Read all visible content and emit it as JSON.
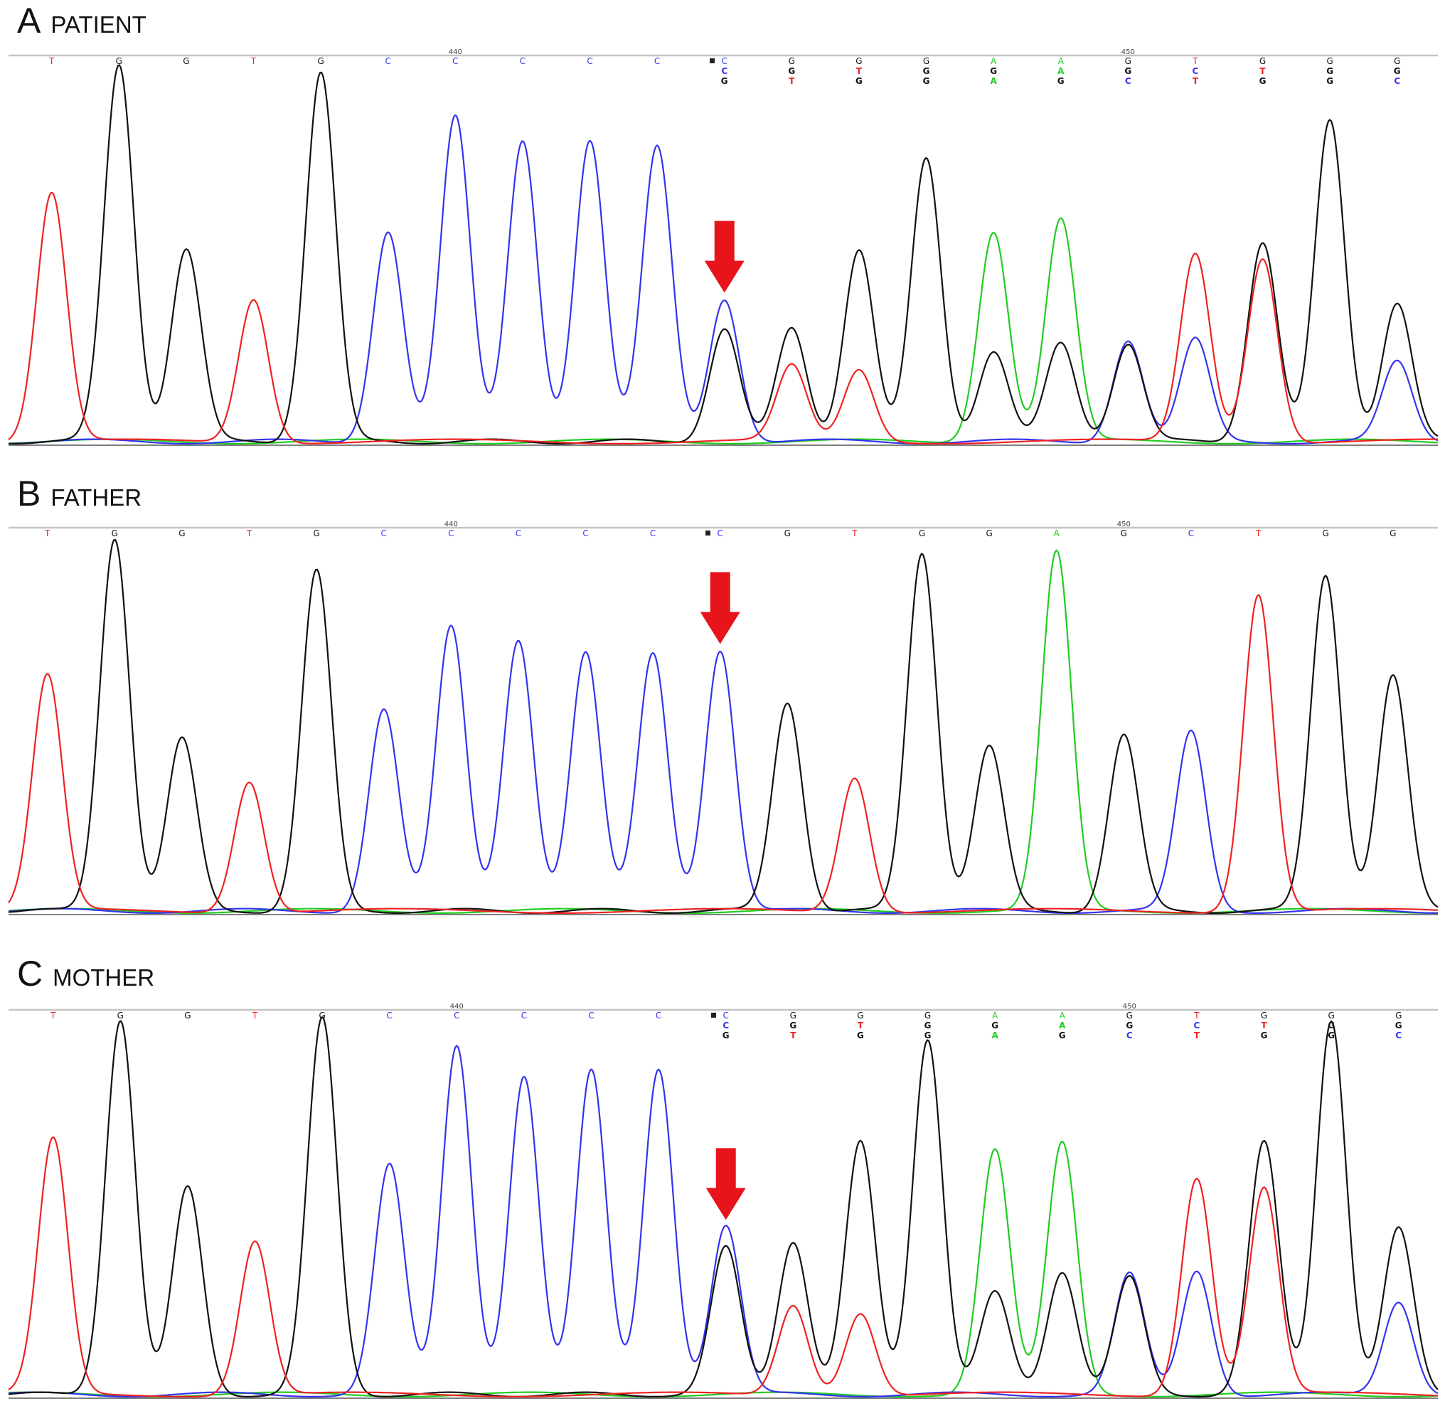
{
  "colors": {
    "A": "#22cc22",
    "C": "#3333ee",
    "G": "#111111",
    "T": "#ee2222",
    "arrow": "#e8141c",
    "rule": "#c4c4c4"
  },
  "chart_data": [
    {
      "type": "line",
      "panel_letter": "A",
      "title": "PATIENT",
      "position_labels": [
        {
          "index": 6,
          "label": "440"
        },
        {
          "index": 16,
          "label": "450"
        }
      ],
      "primary_bases": [
        "T",
        "G",
        "G",
        "T",
        "G",
        "C",
        "C",
        "C",
        "C",
        "C",
        "C",
        "G",
        "G",
        "G",
        "A",
        "A",
        "G",
        "T",
        "G",
        "G",
        "G"
      ],
      "secondary_bases": [
        "",
        "",
        "",
        "",
        "",
        "",
        "",
        "",
        "",
        "",
        "C",
        "G",
        "T",
        "G",
        "G",
        "A",
        "G",
        "C",
        "T",
        "G",
        "G"
      ],
      "tertiary_bases": [
        "",
        "",
        "",
        "",
        "",
        "",
        "",
        "",
        "",
        "",
        "G",
        "T",
        "G",
        "G",
        "A",
        "G",
        "C",
        "T",
        "G",
        "G",
        "C"
      ],
      "marker_index": 10,
      "arrow_index": 10,
      "ylim": [
        0,
        1
      ],
      "peaks": [
        {
          "base": "T",
          "pos": 0.05,
          "h": 0.66
        },
        {
          "base": "G",
          "pos": 1.05,
          "h": 1.0
        },
        {
          "base": "G",
          "pos": 2.05,
          "h": 0.51
        },
        {
          "base": "T",
          "pos": 3.05,
          "h": 0.38
        },
        {
          "base": "G",
          "pos": 4.05,
          "h": 0.98
        },
        {
          "base": "C",
          "pos": 5.05,
          "h": 0.56
        },
        {
          "base": "C",
          "pos": 6.05,
          "h": 0.86
        },
        {
          "base": "C",
          "pos": 7.05,
          "h": 0.8
        },
        {
          "base": "C",
          "pos": 8.05,
          "h": 0.8
        },
        {
          "base": "C",
          "pos": 9.05,
          "h": 0.78
        },
        {
          "base": "C",
          "pos": 10.05,
          "h": 0.38
        },
        {
          "base": "G",
          "pos": 10.05,
          "h": 0.3
        },
        {
          "base": "G",
          "pos": 11.05,
          "h": 0.3
        },
        {
          "base": "T",
          "pos": 11.05,
          "h": 0.2
        },
        {
          "base": "G",
          "pos": 12.05,
          "h": 0.51
        },
        {
          "base": "T",
          "pos": 12.05,
          "h": 0.19
        },
        {
          "base": "G",
          "pos": 13.05,
          "h": 0.75
        },
        {
          "base": "A",
          "pos": 14.05,
          "h": 0.56
        },
        {
          "base": "G",
          "pos": 14.05,
          "h": 0.24
        },
        {
          "base": "A",
          "pos": 15.05,
          "h": 0.59
        },
        {
          "base": "G",
          "pos": 15.05,
          "h": 0.26
        },
        {
          "base": "C",
          "pos": 16.05,
          "h": 0.27
        },
        {
          "base": "G",
          "pos": 16.05,
          "h": 0.26
        },
        {
          "base": "T",
          "pos": 17.05,
          "h": 0.5
        },
        {
          "base": "C",
          "pos": 17.05,
          "h": 0.27
        },
        {
          "base": "T",
          "pos": 18.05,
          "h": 0.49
        },
        {
          "base": "G",
          "pos": 18.05,
          "h": 0.53
        },
        {
          "base": "G",
          "pos": 19.05,
          "h": 0.85
        },
        {
          "base": "G",
          "pos": 20.05,
          "h": 0.37
        },
        {
          "base": "C",
          "pos": 20.05,
          "h": 0.21
        }
      ]
    },
    {
      "type": "line",
      "panel_letter": "B",
      "title": "FATHER",
      "position_labels": [
        {
          "index": 6,
          "label": "440"
        },
        {
          "index": 16,
          "label": "450"
        }
      ],
      "primary_bases": [
        "T",
        "G",
        "G",
        "T",
        "G",
        "C",
        "C",
        "C",
        "C",
        "C",
        "C",
        "G",
        "T",
        "G",
        "G",
        "A",
        "G",
        "C",
        "T",
        "G",
        "G"
      ],
      "secondary_bases": [],
      "tertiary_bases": [],
      "marker_index": 10,
      "arrow_index": 10,
      "ylim": [
        0,
        1
      ],
      "peaks": [
        {
          "base": "T",
          "pos": 0.05,
          "h": 0.63
        },
        {
          "base": "G",
          "pos": 1.05,
          "h": 1.0
        },
        {
          "base": "G",
          "pos": 2.05,
          "h": 0.46
        },
        {
          "base": "T",
          "pos": 3.05,
          "h": 0.35
        },
        {
          "base": "G",
          "pos": 4.05,
          "h": 0.91
        },
        {
          "base": "C",
          "pos": 5.05,
          "h": 0.54
        },
        {
          "base": "C",
          "pos": 6.05,
          "h": 0.76
        },
        {
          "base": "C",
          "pos": 7.05,
          "h": 0.73
        },
        {
          "base": "C",
          "pos": 8.05,
          "h": 0.69
        },
        {
          "base": "C",
          "pos": 9.05,
          "h": 0.69
        },
        {
          "base": "C",
          "pos": 10.05,
          "h": 0.7
        },
        {
          "base": "G",
          "pos": 11.05,
          "h": 0.56
        },
        {
          "base": "T",
          "pos": 12.05,
          "h": 0.36
        },
        {
          "base": "G",
          "pos": 13.05,
          "h": 0.96
        },
        {
          "base": "G",
          "pos": 14.05,
          "h": 0.44
        },
        {
          "base": "A",
          "pos": 15.05,
          "h": 0.96
        },
        {
          "base": "G",
          "pos": 16.05,
          "h": 0.47
        },
        {
          "base": "C",
          "pos": 17.05,
          "h": 0.48
        },
        {
          "base": "T",
          "pos": 18.05,
          "h": 0.85
        },
        {
          "base": "G",
          "pos": 19.05,
          "h": 0.9
        },
        {
          "base": "G",
          "pos": 20.05,
          "h": 0.63
        }
      ]
    },
    {
      "type": "line",
      "panel_letter": "C",
      "title": "MOTHER",
      "position_labels": [
        {
          "index": 6,
          "label": "440"
        },
        {
          "index": 16,
          "label": "450"
        }
      ],
      "primary_bases": [
        "T",
        "G",
        "G",
        "T",
        "G",
        "C",
        "C",
        "C",
        "C",
        "C",
        "C",
        "G",
        "G",
        "G",
        "A",
        "A",
        "G",
        "T",
        "G",
        "G",
        "G"
      ],
      "secondary_bases": [
        "",
        "",
        "",
        "",
        "",
        "",
        "",
        "",
        "",
        "",
        "C",
        "G",
        "T",
        "G",
        "G",
        "A",
        "G",
        "C",
        "T",
        "G",
        "G"
      ],
      "tertiary_bases": [
        "",
        "",
        "",
        "",
        "",
        "",
        "",
        "",
        "",
        "",
        "G",
        "T",
        "G",
        "G",
        "A",
        "G",
        "C",
        "T",
        "G",
        "G",
        "C"
      ],
      "marker_index": 10,
      "arrow_index": 10,
      "ylim": [
        0,
        1
      ],
      "peaks": [
        {
          "base": "T",
          "pos": 0.05,
          "h": 0.68
        },
        {
          "base": "G",
          "pos": 1.05,
          "h": 1.0
        },
        {
          "base": "G",
          "pos": 2.05,
          "h": 0.55
        },
        {
          "base": "T",
          "pos": 3.05,
          "h": 0.41
        },
        {
          "base": "G",
          "pos": 4.05,
          "h": 1.0
        },
        {
          "base": "C",
          "pos": 5.05,
          "h": 0.61
        },
        {
          "base": "C",
          "pos": 6.05,
          "h": 0.93
        },
        {
          "base": "C",
          "pos": 7.05,
          "h": 0.85
        },
        {
          "base": "C",
          "pos": 8.05,
          "h": 0.86
        },
        {
          "base": "C",
          "pos": 9.05,
          "h": 0.87
        },
        {
          "base": "C",
          "pos": 10.05,
          "h": 0.45
        },
        {
          "base": "G",
          "pos": 10.05,
          "h": 0.39
        },
        {
          "base": "G",
          "pos": 11.05,
          "h": 0.41
        },
        {
          "base": "T",
          "pos": 11.05,
          "h": 0.24
        },
        {
          "base": "G",
          "pos": 12.05,
          "h": 0.67
        },
        {
          "base": "T",
          "pos": 12.05,
          "h": 0.22
        },
        {
          "base": "G",
          "pos": 13.05,
          "h": 0.95
        },
        {
          "base": "A",
          "pos": 14.05,
          "h": 0.65
        },
        {
          "base": "G",
          "pos": 14.05,
          "h": 0.27
        },
        {
          "base": "A",
          "pos": 15.05,
          "h": 0.67
        },
        {
          "base": "G",
          "pos": 15.05,
          "h": 0.33
        },
        {
          "base": "C",
          "pos": 16.05,
          "h": 0.32
        },
        {
          "base": "G",
          "pos": 16.05,
          "h": 0.31
        },
        {
          "base": "T",
          "pos": 17.05,
          "h": 0.58
        },
        {
          "base": "C",
          "pos": 17.05,
          "h": 0.33
        },
        {
          "base": "T",
          "pos": 18.05,
          "h": 0.55
        },
        {
          "base": "G",
          "pos": 18.05,
          "h": 0.67
        },
        {
          "base": "G",
          "pos": 19.05,
          "h": 1.0
        },
        {
          "base": "G",
          "pos": 20.05,
          "h": 0.44
        },
        {
          "base": "C",
          "pos": 20.05,
          "h": 0.25
        }
      ]
    }
  ]
}
